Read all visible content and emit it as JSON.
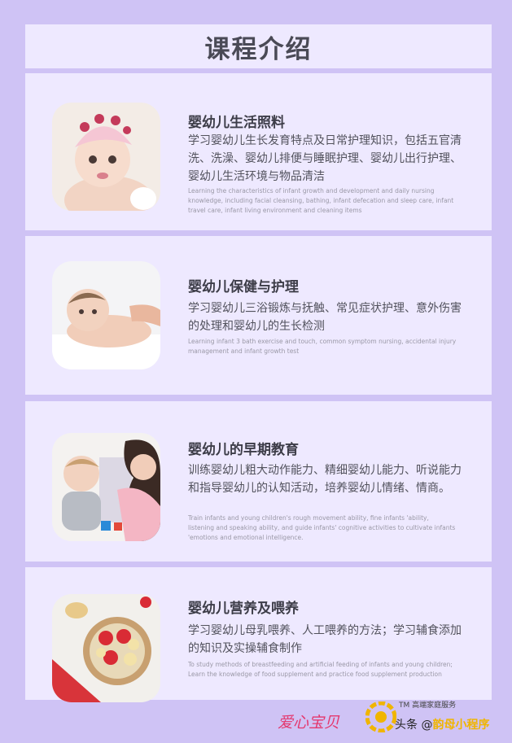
{
  "header": {
    "title": "课程介绍"
  },
  "courses": [
    {
      "title": "婴幼儿生活照料",
      "description": "学习婴幼儿生长发育特点及日常护理知识，包括五官清洗、洗澡、婴幼儿排便与睡眠护理、婴幼儿出行护理、婴幼儿生活环境与物品清洁",
      "english": "Learning the characteristics of infant growth and development and daily nursing knowledge, including facial cleansing, bathing, infant defecation and sleep care, infant travel care, infant living environment and cleaning items",
      "image": "baby-with-headband-photo"
    },
    {
      "title": "婴幼儿保健与护理",
      "description": "学习婴幼儿三浴锻炼与抚触、常见症状护理、意外伤害的处理和婴幼儿的生长检测",
      "english": "Learning infant 3 bath exercise and touch, common symptom nursing, accidental injury management and infant growth test",
      "image": "baby-massage-photo"
    },
    {
      "title": "婴幼儿的早期教育",
      "description": "训练婴幼儿粗大动作能力、精细婴幼儿能力、听说能力和指导婴幼儿的认知活动，培养婴幼儿情绪、情商。",
      "english": "Train infants and young children's rough movement ability, fine infants 'ability, listening and speaking ability, and guide infants' cognitive activities to cultivate infants 'emotions and emotional intelligence.",
      "image": "mother-and-baby-playing-photo"
    },
    {
      "title": "婴幼儿营养及喂养",
      "description": "学习婴幼儿母乳喂养、人工喂养的方法；学习辅食添加的知识及实操辅食制作",
      "english": "To study methods of breastfeeding and artificial feeding of infants and young children; Learn the knowledge of food supplement and practice food supplement production",
      "image": "fruit-bowl-photo"
    }
  ],
  "footer": {
    "brand": "爱心宝贝",
    "tagline": "TM 高端家庭服务",
    "source_prefix": "头条 @",
    "source_name": "韵母小程序"
  },
  "colors": {
    "background": "#cfc3f5",
    "card": "#eee9ff",
    "brand": "#e4386e",
    "logo": "#f0b500"
  }
}
